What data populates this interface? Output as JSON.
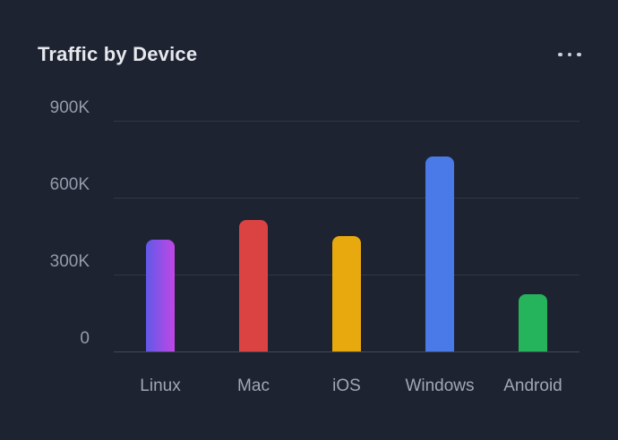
{
  "card": {
    "title": "Traffic by Device",
    "menu_icon": "ellipsis-horizontal-icon"
  },
  "colors": {
    "card_background": "#1e2331",
    "title_text": "#e6e8ed",
    "y_axis_text": "#949cab",
    "x_axis_text": "#a0a8b5",
    "gridline": "rgba(150,160,180,0.16)"
  },
  "chart_data": {
    "type": "bar",
    "title": "Traffic by Device",
    "categories": [
      "Linux",
      "Mac",
      "iOS",
      "Windows",
      "Android"
    ],
    "values": [
      435000,
      512000,
      449000,
      760000,
      224000
    ],
    "ylim": [
      0,
      900000
    ],
    "y_ticks": [
      {
        "value": 900000,
        "label": "900K"
      },
      {
        "value": 600000,
        "label": "600K"
      },
      {
        "value": 300000,
        "label": "300K"
      },
      {
        "value": 0,
        "label": "0"
      }
    ],
    "grid": true,
    "legend": false,
    "xlabel": "",
    "ylabel": "",
    "bar_styles": [
      {
        "type": "gradient",
        "from": "#6159e8",
        "to": "#c047e6"
      },
      {
        "type": "solid",
        "color": "#db4343"
      },
      {
        "type": "solid",
        "color": "#e7a90d"
      },
      {
        "type": "solid",
        "color": "#4a79e8"
      },
      {
        "type": "solid",
        "color": "#25b35b"
      }
    ]
  }
}
